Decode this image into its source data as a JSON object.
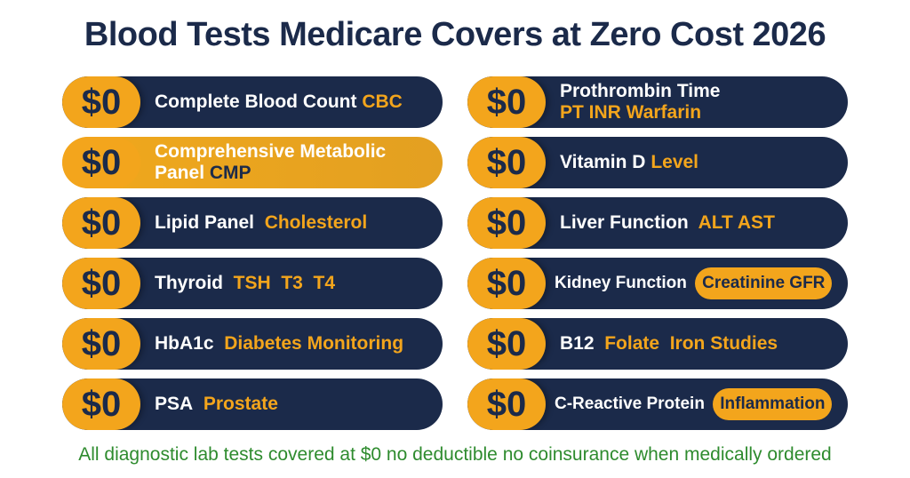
{
  "title": "Blood Tests Medicare Covers at Zero Cost 2026",
  "price_label": "$0",
  "left": [
    {
      "name": "Complete Blood Count",
      "extra": "CBC"
    },
    {
      "name": "Comprehensive Metabolic",
      "name2": "Panel",
      "extra": "CMP"
    },
    {
      "name": "Lipid Panel",
      "extra": "Cholesterol"
    },
    {
      "name": "Thyroid",
      "extra": "TSH  T3  T4"
    },
    {
      "name": "HbA1c",
      "extra": "Diabetes Monitoring"
    },
    {
      "name": "PSA",
      "extra": "Prostate"
    }
  ],
  "right": [
    {
      "name": "Prothrombin Time",
      "extra": "PT INR Warfarin"
    },
    {
      "name": "Vitamin D",
      "extra": "Level"
    },
    {
      "name": "Liver Function",
      "extra": "ALT AST"
    },
    {
      "name": "Kidney Function",
      "extra": "Creatinine GFR"
    },
    {
      "name": "B12",
      "extra": "Folate  Iron Studies"
    },
    {
      "name": "C-Reactive Protein",
      "extra": "Inflammation"
    }
  ],
  "footer": "All diagnostic lab tests covered at $0 no deductible no coinsurance when medically ordered",
  "colors": {
    "navy": "#1b2a4a",
    "gold": "#f3a51c",
    "green": "#2e8b2e"
  }
}
